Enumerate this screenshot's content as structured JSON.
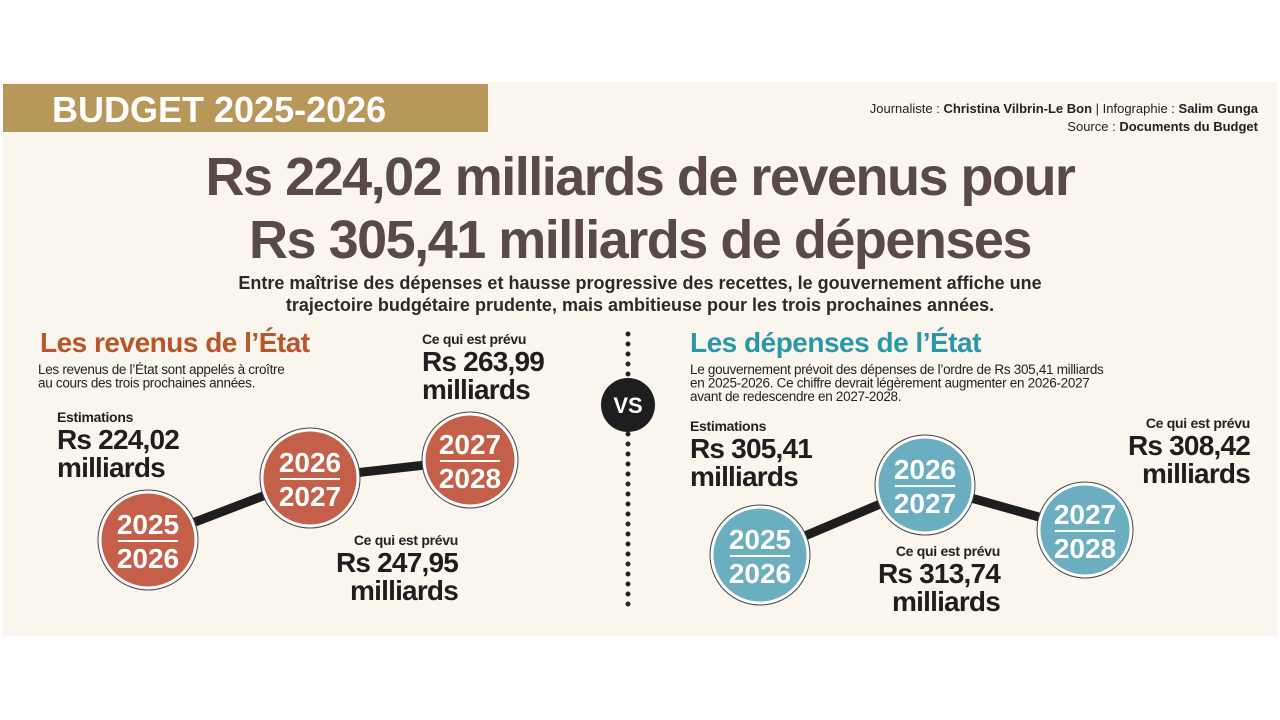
{
  "banner": "BUDGET 2025-2026",
  "credits": {
    "journalist_label": "Journaliste : ",
    "journalist": "Christina Vilbrin-Le Bon",
    "graphics_label": " | Infographie : ",
    "graphics": "Salim Gunga",
    "source_label": "Source : ",
    "source": "Documents du Budget"
  },
  "title": [
    "Rs 224,02 milliards de revenus pour",
    "Rs 305,41 milliards de dépenses"
  ],
  "subtitle": [
    "Entre maîtrise des dépenses et hausse progressive des recettes, le gouvernement affiche une",
    "trajectoire budgétaire prudente, mais ambitieuse pour les trois prochaines années."
  ],
  "vs": "VS",
  "left": {
    "heading": "Les revenus de l’État",
    "description": [
      "Les revenus de l’État sont appelés à croître",
      "au cours des trois prochaines années."
    ],
    "items": [
      {
        "year_top": "2025",
        "year_bottom": "2026",
        "label": "Estimations",
        "amount": "Rs 224,02",
        "unit": "milliards"
      },
      {
        "year_top": "2026",
        "year_bottom": "2027",
        "label": "Ce qui est prévu",
        "amount": "Rs 247,95",
        "unit": "milliards"
      },
      {
        "year_top": "2027",
        "year_bottom": "2028",
        "label": "Ce qui est prévu",
        "amount": "Rs 263,99",
        "unit": "milliards"
      }
    ]
  },
  "right": {
    "heading": "Les dépenses de l’État",
    "description": [
      "Le gouvernement prévoit des dépenses de l’ordre de Rs 305,41 milliards",
      "en 2025-2026. Ce chiffre devrait légèrement augmenter en 2026-2027",
      "avant de redescendre en 2027-2028."
    ],
    "items": [
      {
        "year_top": "2025",
        "year_bottom": "2026",
        "label": "Estimations",
        "amount": "Rs 305,41",
        "unit": "milliards"
      },
      {
        "year_top": "2026",
        "year_bottom": "2027",
        "label": "Ce qui est prévu",
        "amount": "Rs 313,74",
        "unit": "milliards"
      },
      {
        "year_top": "2027",
        "year_bottom": "2028",
        "label": "Ce qui est prévu",
        "amount": "Rs 308,42",
        "unit": "milliards"
      }
    ]
  }
}
